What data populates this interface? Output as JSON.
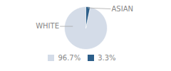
{
  "chart_data": {
    "type": "pie",
    "categories": [
      "WHITE",
      "ASIAN"
    ],
    "values": [
      96.7,
      3.3
    ],
    "value_labels": [
      "96.7%",
      "3.3%"
    ],
    "colors": [
      "#d4dce8",
      "#2d5f8a"
    ],
    "legend": "bottom"
  }
}
